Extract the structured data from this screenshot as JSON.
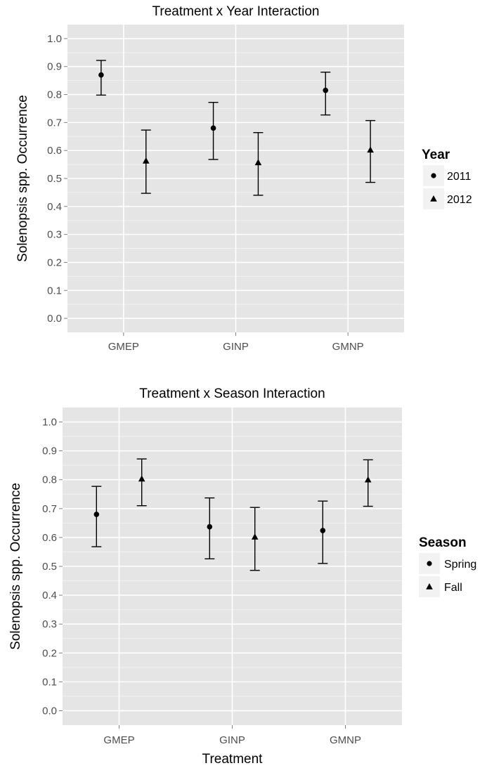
{
  "chart_data": [
    {
      "type": "scatter",
      "title": "Treatment x Year Interaction",
      "xlabel": "",
      "ylabel": "Solenopsis spp. Occurrence",
      "categories": [
        "GMEP",
        "GINP",
        "GMNP"
      ],
      "ylim": [
        -0.05,
        1.05
      ],
      "yticks": [
        "0.0",
        "0.1",
        "0.2",
        "0.3",
        "0.4",
        "0.5",
        "0.6",
        "0.7",
        "0.8",
        "0.9",
        "1.0"
      ],
      "grid": true,
      "legend": {
        "title": "Year",
        "placement": "right"
      },
      "error_bars": true,
      "series": [
        {
          "name": "2011",
          "marker": "circle",
          "values": [
            0.87,
            0.68,
            0.815
          ],
          "lower": [
            0.798,
            0.568,
            0.727
          ],
          "upper": [
            0.922,
            0.772,
            0.88
          ]
        },
        {
          "name": "2012",
          "marker": "triangle",
          "values": [
            0.563,
            0.557,
            0.602
          ],
          "lower": [
            0.447,
            0.44,
            0.486
          ],
          "upper": [
            0.673,
            0.664,
            0.707
          ]
        }
      ]
    },
    {
      "type": "scatter",
      "title": "Treatment x Season Interaction",
      "xlabel": "Treatment",
      "ylabel": "Solenopsis spp. Occurrence",
      "categories": [
        "GMEP",
        "GINP",
        "GMNP"
      ],
      "ylim": [
        -0.05,
        1.05
      ],
      "yticks": [
        "0.0",
        "0.1",
        "0.2",
        "0.3",
        "0.4",
        "0.5",
        "0.6",
        "0.7",
        "0.8",
        "0.9",
        "1.0"
      ],
      "grid": true,
      "legend": {
        "title": "Season",
        "placement": "right"
      },
      "error_bars": true,
      "series": [
        {
          "name": "Spring",
          "marker": "circle",
          "values": [
            0.68,
            0.637,
            0.624
          ],
          "lower": [
            0.568,
            0.526,
            0.51
          ],
          "upper": [
            0.777,
            0.737,
            0.726
          ]
        },
        {
          "name": "Fall",
          "marker": "triangle",
          "values": [
            0.803,
            0.602,
            0.8
          ],
          "lower": [
            0.71,
            0.486,
            0.708
          ],
          "upper": [
            0.872,
            0.704,
            0.869
          ]
        }
      ]
    }
  ]
}
